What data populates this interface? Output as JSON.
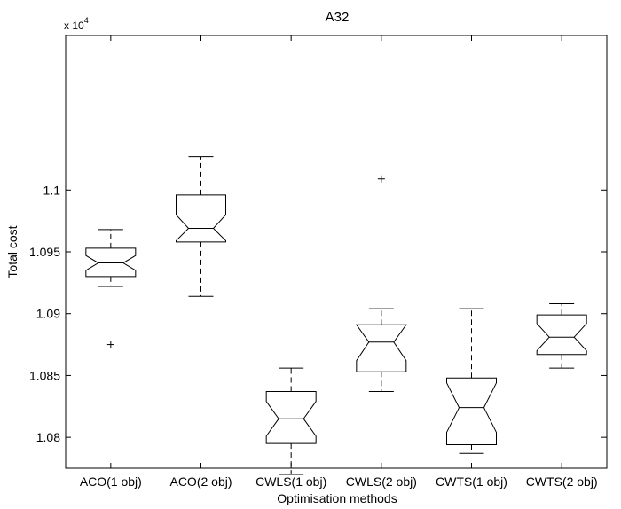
{
  "chart_data": {
    "type": "boxplot",
    "title": "A32",
    "xlabel": "Optimisation methods",
    "ylabel": "Total cost",
    "exponent_label": "x 10",
    "exponent_power": "4",
    "ylim": [
      1.0775,
      1.1125
    ],
    "yticks": [
      1.08,
      1.085,
      1.09,
      1.095,
      1.1
    ],
    "ytick_labels": [
      "1.08",
      "1.085",
      "1.09",
      "1.095",
      "1.1"
    ],
    "notched": true,
    "grid": false,
    "categories": [
      "ACO(1 obj)",
      "ACO(2 obj)",
      "CWLS(1 obj)",
      "CWLS(2 obj)",
      "CWTS(1 obj)",
      "CWTS(2 obj)"
    ],
    "boxes": [
      {
        "label": "ACO(1 obj)",
        "whisker_low": 1.0922,
        "q1": 1.093,
        "median": 1.0941,
        "q3": 1.0953,
        "whisker_high": 1.0968,
        "notch_low": 1.0935,
        "notch_high": 1.0947,
        "outliers": [
          1.0875
        ]
      },
      {
        "label": "ACO(2 obj)",
        "whisker_low": 1.0914,
        "q1": 1.0958,
        "median": 1.0969,
        "q3": 1.0996,
        "whisker_high": 1.1027,
        "notch_low": 1.0959,
        "notch_high": 1.098,
        "outliers": []
      },
      {
        "label": "CWLS(1 obj)",
        "whisker_low": 1.077,
        "q1": 1.0795,
        "median": 1.0815,
        "q3": 1.0837,
        "whisker_high": 1.0856,
        "notch_low": 1.0801,
        "notch_high": 1.0829,
        "outliers": []
      },
      {
        "label": "CWLS(2 obj)",
        "whisker_low": 1.0837,
        "q1": 1.0853,
        "median": 1.0877,
        "q3": 1.0891,
        "whisker_high": 1.0904,
        "notch_low": 1.0862,
        "notch_high": 1.0891,
        "outliers": [
          1.1009
        ]
      },
      {
        "label": "CWTS(1 obj)",
        "whisker_low": 1.0787,
        "q1": 1.0794,
        "median": 1.0824,
        "q3": 1.0848,
        "whisker_high": 1.0904,
        "notch_low": 1.0804,
        "notch_high": 1.0844,
        "outliers": []
      },
      {
        "label": "CWTS(2 obj)",
        "whisker_low": 1.0856,
        "q1": 1.0867,
        "median": 1.0881,
        "q3": 1.0899,
        "whisker_high": 1.0908,
        "notch_low": 1.087,
        "notch_high": 1.0892,
        "outliers": []
      }
    ]
  }
}
